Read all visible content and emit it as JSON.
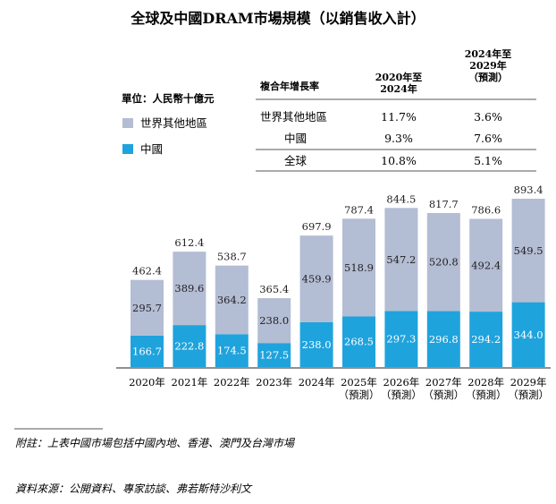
{
  "title": "全球及中國DRAM市場規模（以銷售收入計）",
  "unit_label": "單位：人民幣十億元",
  "colors": {
    "rest": "#b3bdd4",
    "china": "#1fa3dd",
    "text": "#231f20",
    "line": "#231f20"
  },
  "cagr_table": {
    "header": "複合年增長率",
    "columns": [
      [
        "2020年至",
        "2024年"
      ],
      [
        "2024年至",
        "2029年",
        "（預測）"
      ]
    ],
    "rows": [
      {
        "label": "世界其他地區",
        "values": [
          "11.7%",
          "3.6%"
        ]
      },
      {
        "label": "中國",
        "values": [
          "9.3%",
          "7.6%"
        ]
      },
      {
        "label": "全球",
        "values": [
          "10.8%",
          "5.1%"
        ]
      }
    ]
  },
  "chart_data": {
    "type": "bar",
    "stacked": true,
    "categories": [
      [
        "2020年"
      ],
      [
        "2021年"
      ],
      [
        "2022年"
      ],
      [
        "2023年"
      ],
      [
        "2024年"
      ],
      [
        "2025年",
        "（預測）"
      ],
      [
        "2026年",
        "（預測）"
      ],
      [
        "2027年",
        "（預測）"
      ],
      [
        "2028年",
        "（預測）"
      ],
      [
        "2029年",
        "（預測）"
      ]
    ],
    "series": [
      {
        "name": "中國",
        "color": "#1fa3dd",
        "values": [
          166.7,
          222.8,
          174.5,
          127.5,
          238.0,
          268.5,
          297.3,
          296.8,
          294.2,
          344.0
        ],
        "labels": [
          "166.7",
          "222.8",
          "174.5",
          "127.5",
          "238.0",
          "268.5",
          "297.3",
          "296.8",
          "294.2",
          "344.0"
        ]
      },
      {
        "name": "世界其他地區",
        "color": "#b3bdd4",
        "values": [
          295.7,
          389.6,
          364.2,
          238.0,
          459.9,
          518.9,
          547.2,
          520.8,
          492.4,
          549.5
        ],
        "labels": [
          "295.7",
          "389.6",
          "364.2",
          "238.0",
          "459.9",
          "518.9",
          "547.2",
          "520.8",
          "492.4",
          "549.5"
        ]
      }
    ],
    "totals": [
      462.4,
      612.4,
      538.7,
      365.4,
      697.9,
      787.4,
      844.5,
      817.7,
      786.6,
      893.4
    ],
    "total_labels": [
      "462.4",
      "612.4",
      "538.7",
      "365.4",
      "697.9",
      "787.4",
      "844.5",
      "817.7",
      "786.6",
      "893.4"
    ],
    "legend": [
      {
        "name": "世界其他地區",
        "color": "#b3bdd4"
      },
      {
        "name": "中國",
        "color": "#1fa3dd"
      }
    ],
    "ylim": [
      0,
      893.4
    ],
    "grid": false,
    "xlabel": "",
    "ylabel": ""
  },
  "notes": {
    "footnote": "附註：上表中國市場包括中國內地、香港、澳門及台灣市場",
    "source": "資料來源：公開資料、專家訪談、弗若斯特沙利文"
  }
}
